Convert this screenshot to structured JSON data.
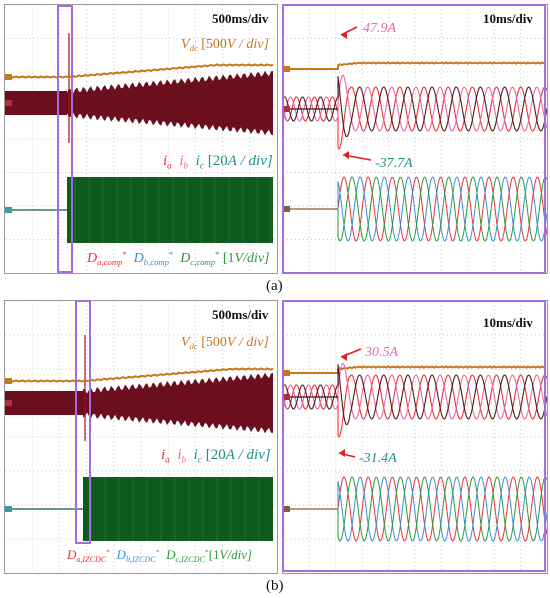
{
  "figures": [
    {
      "caption": "(a)",
      "left_timediv": "500ms/div",
      "right_timediv": "10ms/div",
      "vdc": {
        "sym": "V",
        "sub": "dc",
        "scale": "[500",
        "unit": "V",
        "div": "/ div]"
      },
      "currents": {
        "a": "i",
        "a_sub": "a",
        "b": "i",
        "b_sub": "b",
        "c": "i",
        "c_sub": "c",
        "scale": "[20",
        "unit": "A",
        "div": "/ div]"
      },
      "duty": {
        "a_sub": "a,comp",
        "b_sub": "b,comp",
        "c_sub": "c,comp",
        "scale": "[1",
        "unit": "V",
        "div": "/div]"
      },
      "peak_pos": {
        "value": "47.9",
        "unit": "A"
      },
      "peak_neg": {
        "value": "-37.7",
        "unit": "A"
      }
    },
    {
      "caption": "(b)",
      "left_timediv": "500ms/div",
      "right_timediv": "10ms/div",
      "vdc": {
        "sym": "V",
        "sub": "dc",
        "scale": "[500",
        "unit": "V",
        "div": "/ div]"
      },
      "currents": {
        "a": "i",
        "a_sub": "a",
        "b": "i",
        "b_sub": "b",
        "c": "i",
        "c_sub": "c",
        "scale": "[20",
        "unit": "A",
        "div": "/ div]"
      },
      "duty": {
        "a_sub": "a,IZCDC",
        "b_sub": "b,IZCDC",
        "c_sub": "c,IZCDC",
        "scale": "[1",
        "unit": "V",
        "div": "/div]"
      },
      "peak_pos": {
        "value": "30.5",
        "unit": "A"
      },
      "peak_neg": {
        "value": "-31.4",
        "unit": "A"
      }
    }
  ],
  "duty_symbol": "D",
  "duty_star": "*",
  "colors": {
    "vdc": "#c8771a",
    "ia": "#e8323c",
    "ib": "#e86aa8",
    "ic": "#1f8f88",
    "current_band": "#6b0f1f",
    "duty_band": "#0f5a1e",
    "da": "#e8323c",
    "db": "#3a8fd6",
    "dc": "#2a9a3a",
    "highlight": "#a56be0",
    "arrow": "#e02020",
    "peak_pos": "#e86aa8",
    "peak_neg": "#1f8f88"
  },
  "icons": [
    "red-arrow-icon"
  ]
}
